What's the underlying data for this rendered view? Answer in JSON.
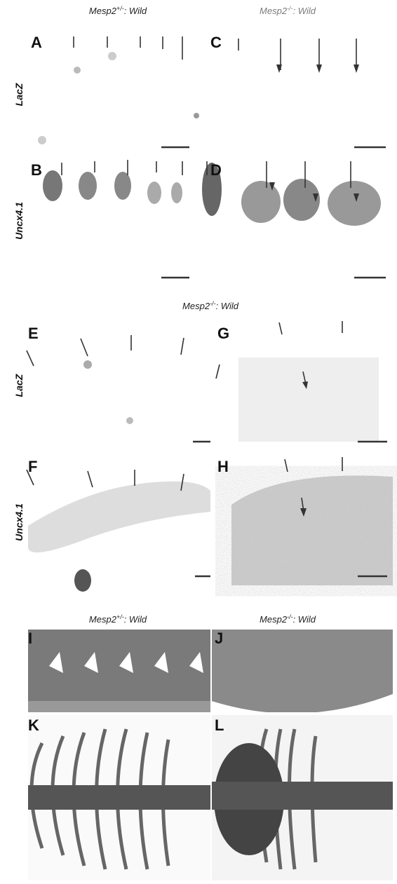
{
  "headers": [
    {
      "gene": "Mesp2",
      "genotype": "+/-",
      "strain": ": Wild"
    },
    {
      "gene": "Mesp2",
      "genotype": "-/-",
      "strain": ": Wild"
    },
    {
      "gene": "Mesp2",
      "genotype": "-/-",
      "strain": ": Wild"
    },
    {
      "gene": "Mesp2",
      "genotype": "+/-",
      "strain": ": Wild"
    },
    {
      "gene": "Mesp2",
      "genotype": "-/-",
      "strain": ": Wild"
    }
  ],
  "panels": [
    "A",
    "B",
    "C",
    "D",
    "E",
    "F",
    "G",
    "H",
    "I",
    "J",
    "K",
    "L"
  ],
  "row_labels": [
    "LacZ",
    "Uncx4.1",
    "LacZ",
    "Uncx4.1"
  ]
}
